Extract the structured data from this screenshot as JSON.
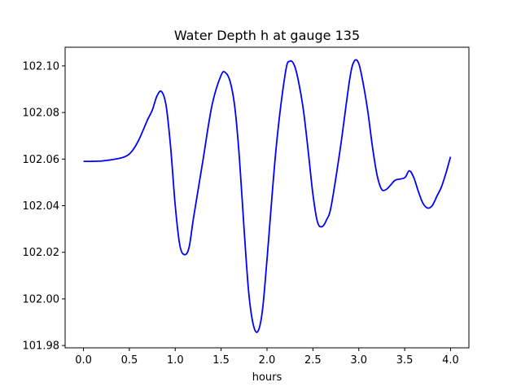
{
  "chart_data": {
    "type": "line",
    "title": "Water Depth h at gauge 135",
    "xlabel": "hours",
    "ylabel": "",
    "xlim": [
      -0.2,
      4.2
    ],
    "ylim": [
      101.979,
      102.108
    ],
    "xticks": [
      "0.0",
      "0.5",
      "1.0",
      "1.5",
      "2.0",
      "2.5",
      "3.0",
      "3.5",
      "4.0"
    ],
    "yticks": [
      "101.98",
      "102.00",
      "102.02",
      "102.04",
      "102.06",
      "102.08",
      "102.10"
    ],
    "grid": false,
    "series": [
      {
        "color": "#0000ff",
        "x": [
          0.0,
          0.2,
          0.35,
          0.45,
          0.52,
          0.6,
          0.7,
          0.75,
          0.8,
          0.85,
          0.9,
          0.95,
          1.0,
          1.05,
          1.1,
          1.15,
          1.2,
          1.3,
          1.4,
          1.5,
          1.55,
          1.6,
          1.65,
          1.7,
          1.75,
          1.8,
          1.85,
          1.9,
          1.95,
          2.0,
          2.1,
          2.2,
          2.25,
          2.3,
          2.35,
          2.4,
          2.45,
          2.5,
          2.55,
          2.6,
          2.65,
          2.7,
          2.8,
          2.9,
          2.95,
          3.0,
          3.05,
          3.1,
          3.15,
          3.2,
          3.25,
          3.3,
          3.35,
          3.4,
          3.5,
          3.55,
          3.6,
          3.65,
          3.7,
          3.75,
          3.8,
          3.85,
          3.9,
          3.95,
          4.0
        ],
        "y": [
          102.059,
          102.0592,
          102.06,
          102.061,
          102.063,
          102.068,
          102.077,
          102.081,
          102.087,
          102.089,
          102.083,
          102.065,
          102.04,
          102.023,
          102.019,
          102.022,
          102.035,
          102.059,
          102.083,
          102.096,
          102.097,
          102.093,
          102.082,
          102.06,
          102.03,
          102.003,
          101.989,
          101.986,
          101.995,
          102.017,
          102.065,
          102.097,
          102.102,
          102.1,
          102.092,
          102.08,
          102.063,
          102.045,
          102.033,
          102.031,
          102.034,
          102.04,
          102.065,
          102.094,
          102.102,
          102.101,
          102.092,
          102.08,
          102.065,
          102.053,
          102.047,
          102.047,
          102.049,
          102.051,
          102.052,
          102.055,
          102.052,
          102.046,
          102.041,
          102.039,
          102.04,
          102.044,
          102.048,
          102.054,
          102.061
        ]
      }
    ]
  }
}
